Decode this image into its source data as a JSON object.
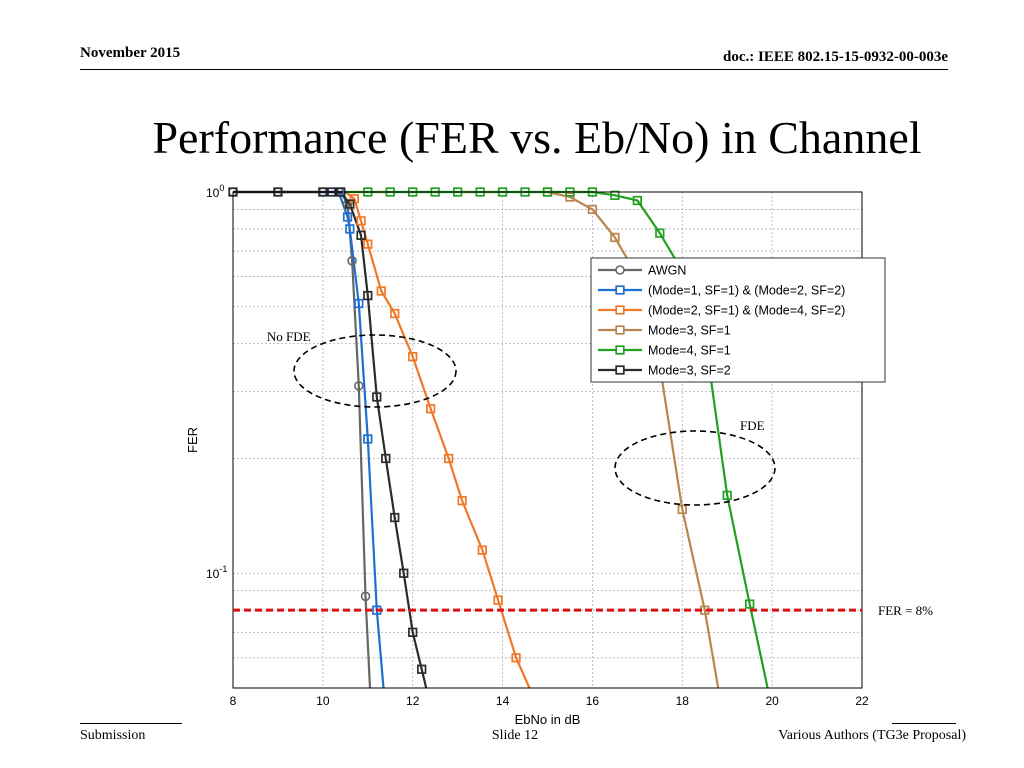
{
  "header": {
    "date": "November 2015",
    "doc": "doc.: IEEE 802.15-15-0932-00-003e"
  },
  "slide": {
    "title": "Performance (FER vs. Eb/No) in Channel"
  },
  "footer": {
    "left": "Submission",
    "center": "Slide 12",
    "right": "Various Authors (TG3e Proposal)"
  },
  "chart_data": {
    "type": "line",
    "title": "",
    "xlabel": "EbNo in dB",
    "ylabel": "FER",
    "xlim": [
      8,
      22
    ],
    "ylim": [
      0.05,
      1.0
    ],
    "yscale": "log",
    "grid": true,
    "xticks": [
      "8",
      "10",
      "12",
      "14",
      "16",
      "18",
      "20",
      "22"
    ],
    "yticks": [
      {
        "base": "10",
        "exp": "0",
        "value": 1.0
      },
      {
        "base": "10",
        "exp": "-1",
        "value": 0.1
      }
    ],
    "legend_position": "top-right",
    "series": [
      {
        "name": "AWGN",
        "color": "#666666",
        "marker": "circle",
        "points": [
          [
            8,
            1.0
          ],
          [
            9,
            1.0
          ],
          [
            10,
            1.0
          ],
          [
            10.4,
            1.0
          ],
          [
            10.55,
            0.93
          ],
          [
            10.65,
            0.66
          ],
          [
            10.8,
            0.31
          ],
          [
            10.95,
            0.087
          ],
          [
            11.05,
            0.05
          ]
        ],
        "marker_points": [
          [
            8,
            1.0
          ],
          [
            9,
            1.0
          ],
          [
            10,
            1.0
          ],
          [
            10.4,
            1.0
          ],
          [
            10.55,
            0.93
          ],
          [
            10.65,
            0.66
          ],
          [
            10.8,
            0.31
          ],
          [
            10.95,
            0.087
          ]
        ]
      },
      {
        "name": "(Mode=1, SF=1) & (Mode=2, SF=2)",
        "color": "#1f6fd0",
        "marker": "square",
        "points": [
          [
            8,
            1.0
          ],
          [
            9,
            1.0
          ],
          [
            10,
            1.0
          ],
          [
            10.35,
            1.0
          ],
          [
            10.55,
            0.86
          ],
          [
            10.6,
            0.8
          ],
          [
            10.8,
            0.51
          ],
          [
            11.0,
            0.225
          ],
          [
            11.2,
            0.08
          ],
          [
            11.35,
            0.05
          ]
        ],
        "marker_points": [
          [
            10.35,
            1.0
          ],
          [
            10.55,
            0.86
          ],
          [
            10.6,
            0.8
          ],
          [
            10.8,
            0.51
          ],
          [
            11.0,
            0.225
          ],
          [
            11.2,
            0.08
          ]
        ]
      },
      {
        "name": "(Mode=2, SF=1) & (Mode=4, SF=2)",
        "color": "#f07828",
        "marker": "square",
        "points": [
          [
            10.5,
            1.0
          ],
          [
            10.7,
            0.96
          ],
          [
            10.85,
            0.84
          ],
          [
            11.0,
            0.73
          ],
          [
            11.3,
            0.55
          ],
          [
            11.6,
            0.48
          ],
          [
            12.0,
            0.37
          ],
          [
            12.4,
            0.27
          ],
          [
            12.8,
            0.2
          ],
          [
            13.1,
            0.155
          ],
          [
            13.55,
            0.115
          ],
          [
            13.9,
            0.085
          ],
          [
            14.3,
            0.06
          ],
          [
            14.6,
            0.05
          ]
        ],
        "marker_points": [
          [
            10.7,
            0.96
          ],
          [
            10.85,
            0.84
          ],
          [
            11.0,
            0.73
          ],
          [
            11.3,
            0.55
          ],
          [
            11.6,
            0.48
          ],
          [
            12.0,
            0.37
          ],
          [
            12.4,
            0.27
          ],
          [
            12.8,
            0.2
          ],
          [
            13.1,
            0.155
          ],
          [
            13.55,
            0.115
          ],
          [
            13.9,
            0.085
          ],
          [
            14.3,
            0.06
          ]
        ]
      },
      {
        "name": "Mode=3, SF=1",
        "color": "#b8864e",
        "marker": "square",
        "points": [
          [
            15.0,
            1.0
          ],
          [
            15.5,
            0.97
          ],
          [
            16.0,
            0.9
          ],
          [
            16.5,
            0.76
          ],
          [
            17.0,
            0.6
          ],
          [
            17.5,
            0.35
          ],
          [
            18.0,
            0.147
          ],
          [
            18.5,
            0.08
          ],
          [
            18.8,
            0.05
          ]
        ],
        "marker_points": [
          [
            15.0,
            1.0
          ],
          [
            15.5,
            0.97
          ],
          [
            16.0,
            0.9
          ],
          [
            16.5,
            0.76
          ],
          [
            17.0,
            0.6
          ],
          [
            17.5,
            0.35
          ],
          [
            18.0,
            0.147
          ],
          [
            18.5,
            0.08
          ]
        ]
      },
      {
        "name": "Mode=4, SF=1",
        "color": "#22a022",
        "marker": "square",
        "points": [
          [
            10.5,
            1.0
          ],
          [
            11,
            1.0
          ],
          [
            11.5,
            1.0
          ],
          [
            12,
            1.0
          ],
          [
            12.5,
            1.0
          ],
          [
            13,
            1.0
          ],
          [
            13.5,
            1.0
          ],
          [
            14,
            1.0
          ],
          [
            14.5,
            1.0
          ],
          [
            15,
            1.0
          ],
          [
            15.5,
            1.0
          ],
          [
            16.0,
            1.0
          ],
          [
            16.5,
            0.98
          ],
          [
            17.0,
            0.95
          ],
          [
            17.5,
            0.78
          ],
          [
            18.0,
            0.62
          ],
          [
            18.5,
            0.42
          ],
          [
            19.0,
            0.16
          ],
          [
            19.5,
            0.083
          ],
          [
            19.9,
            0.05
          ]
        ],
        "marker_points": [
          [
            11,
            1.0
          ],
          [
            11.5,
            1.0
          ],
          [
            12,
            1.0
          ],
          [
            12.5,
            1.0
          ],
          [
            13,
            1.0
          ],
          [
            13.5,
            1.0
          ],
          [
            14,
            1.0
          ],
          [
            14.5,
            1.0
          ],
          [
            15,
            1.0
          ],
          [
            15.5,
            1.0
          ],
          [
            16.0,
            1.0
          ],
          [
            16.5,
            0.98
          ],
          [
            17.0,
            0.95
          ],
          [
            17.5,
            0.78
          ],
          [
            18.0,
            0.62
          ],
          [
            18.5,
            0.42
          ],
          [
            19.0,
            0.16
          ],
          [
            19.5,
            0.083
          ]
        ]
      },
      {
        "name": "Mode=3, SF=2",
        "color": "#2b2b2b",
        "marker": "square",
        "points": [
          [
            8,
            1.0
          ],
          [
            9,
            1.0
          ],
          [
            10,
            1.0
          ],
          [
            10.2,
            1.0
          ],
          [
            10.4,
            1.0
          ],
          [
            10.6,
            0.93
          ],
          [
            10.85,
            0.77
          ],
          [
            11.0,
            0.535
          ],
          [
            11.2,
            0.29
          ],
          [
            11.4,
            0.2
          ],
          [
            11.6,
            0.14
          ],
          [
            11.8,
            0.1
          ],
          [
            12.0,
            0.07
          ],
          [
            12.2,
            0.056
          ],
          [
            12.3,
            0.05
          ]
        ],
        "marker_points": [
          [
            8,
            1.0
          ],
          [
            9,
            1.0
          ],
          [
            10,
            1.0
          ],
          [
            10.2,
            1.0
          ],
          [
            10.4,
            1.0
          ],
          [
            10.6,
            0.93
          ],
          [
            10.85,
            0.77
          ],
          [
            11.0,
            0.535
          ],
          [
            11.2,
            0.29
          ],
          [
            11.4,
            0.2
          ],
          [
            11.6,
            0.14
          ],
          [
            11.8,
            0.1
          ],
          [
            12.0,
            0.07
          ],
          [
            12.2,
            0.056
          ]
        ]
      }
    ],
    "reference_line": {
      "label": "FER = 8%",
      "y": 0.08,
      "color": "#dd1111",
      "style": "dashed"
    },
    "annotations": [
      {
        "text": "No FDE",
        "x": 10.0,
        "y": 0.31
      },
      {
        "text": "FDE",
        "x": 18.0,
        "y": 0.15
      }
    ]
  }
}
